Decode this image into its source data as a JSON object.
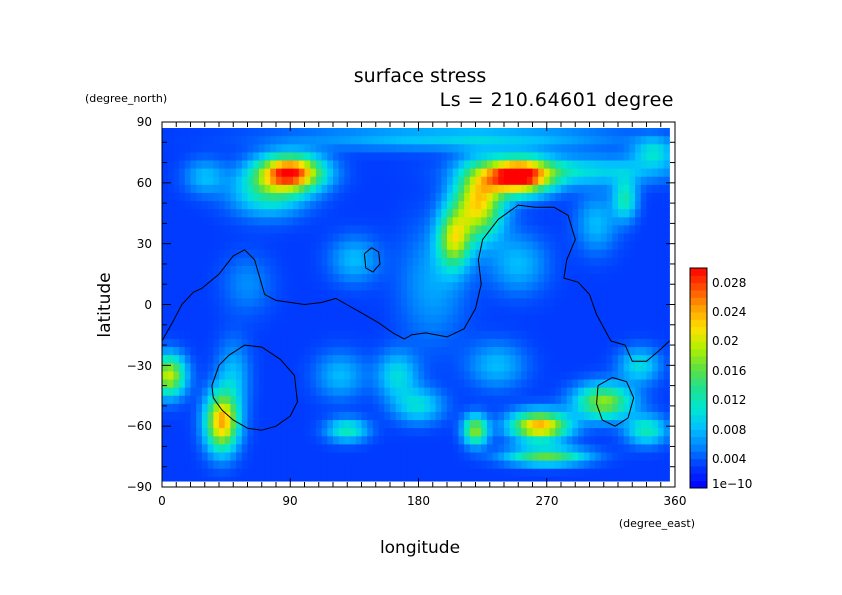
{
  "chart_data": {
    "type": "heatmap",
    "title": "surface stress",
    "subtitle": "Ls = 210.64601 degree",
    "xlabel": "longitude",
    "ylabel": "latitude",
    "x_units": "(degree_east)",
    "y_units": "(degree_north)",
    "xlim": [
      0,
      360
    ],
    "ylim": [
      -90,
      90
    ],
    "x_ticks": [
      "0",
      "90",
      "180",
      "270",
      "360"
    ],
    "y_ticks": [
      "90",
      "60",
      "30",
      "0",
      "−30",
      "−60",
      "−90"
    ],
    "x_tick_values": [
      0,
      90,
      180,
      270,
      360
    ],
    "y_tick_values": [
      90,
      60,
      30,
      0,
      -30,
      -60,
      -90
    ],
    "grid": false,
    "data_extent": {
      "lon": [
        0,
        356
      ],
      "lat": [
        -87,
        87
      ]
    },
    "background_value": 0.003,
    "hotspots": [
      {
        "lon": 90,
        "lat": 65,
        "value": 0.028,
        "sx": 16,
        "sy": 6
      },
      {
        "lon": 75,
        "lat": 55,
        "value": 0.012,
        "sx": 18,
        "sy": 8
      },
      {
        "lon": 30,
        "lat": 63,
        "value": 0.008,
        "sx": 10,
        "sy": 6
      },
      {
        "lon": 250,
        "lat": 63,
        "value": 0.03,
        "sx": 16,
        "sy": 6
      },
      {
        "lon": 222,
        "lat": 50,
        "value": 0.022,
        "sx": 12,
        "sy": 12
      },
      {
        "lon": 205,
        "lat": 32,
        "value": 0.018,
        "sx": 8,
        "sy": 10
      },
      {
        "lon": 190,
        "lat": 10,
        "value": 0.007,
        "sx": 16,
        "sy": 20
      },
      {
        "lon": 290,
        "lat": 66,
        "value": 0.01,
        "sx": 45,
        "sy": 5
      },
      {
        "lon": 240,
        "lat": 82,
        "value": 0.008,
        "sx": 60,
        "sy": 4
      },
      {
        "lon": 325,
        "lat": 52,
        "value": 0.012,
        "sx": 6,
        "sy": 7
      },
      {
        "lon": 5,
        "lat": -35,
        "value": 0.02,
        "sx": 8,
        "sy": 7
      },
      {
        "lon": 42,
        "lat": -58,
        "value": 0.024,
        "sx": 8,
        "sy": 10
      },
      {
        "lon": 50,
        "lat": -35,
        "value": 0.008,
        "sx": 8,
        "sy": 12
      },
      {
        "lon": 130,
        "lat": -62,
        "value": 0.012,
        "sx": 10,
        "sy": 4
      },
      {
        "lon": 180,
        "lat": -50,
        "value": 0.01,
        "sx": 12,
        "sy": 6
      },
      {
        "lon": 220,
        "lat": -62,
        "value": 0.018,
        "sx": 6,
        "sy": 5
      },
      {
        "lon": 265,
        "lat": -60,
        "value": 0.024,
        "sx": 14,
        "sy": 5
      },
      {
        "lon": 270,
        "lat": -75,
        "value": 0.016,
        "sx": 20,
        "sy": 3
      },
      {
        "lon": 310,
        "lat": -48,
        "value": 0.018,
        "sx": 14,
        "sy": 6
      },
      {
        "lon": 340,
        "lat": -62,
        "value": 0.012,
        "sx": 10,
        "sy": 5
      },
      {
        "lon": 165,
        "lat": -35,
        "value": 0.01,
        "sx": 10,
        "sy": 8
      },
      {
        "lon": 125,
        "lat": -35,
        "value": 0.008,
        "sx": 12,
        "sy": 8
      },
      {
        "lon": 135,
        "lat": 22,
        "value": 0.008,
        "sx": 12,
        "sy": 8
      },
      {
        "lon": 305,
        "lat": 40,
        "value": 0.008,
        "sx": 10,
        "sy": 10
      },
      {
        "lon": 335,
        "lat": -30,
        "value": 0.01,
        "sx": 10,
        "sy": 6
      },
      {
        "lon": 235,
        "lat": -30,
        "value": 0.008,
        "sx": 14,
        "sy": 8
      },
      {
        "lon": 60,
        "lat": 10,
        "value": 0.006,
        "sx": 12,
        "sy": 10
      },
      {
        "lon": 250,
        "lat": 20,
        "value": 0.008,
        "sx": 14,
        "sy": 10
      },
      {
        "lon": 345,
        "lat": 75,
        "value": 0.01,
        "sx": 10,
        "sy": 5
      },
      {
        "lon": 150,
        "lat": 82,
        "value": 0.006,
        "sx": 60,
        "sy": 4
      }
    ],
    "contours": [
      {
        "name": "northern-outline",
        "points": [
          [
            0,
            -18
          ],
          [
            8,
            -8
          ],
          [
            14,
            0
          ],
          [
            22,
            6
          ],
          [
            28,
            8
          ],
          [
            40,
            15
          ],
          [
            50,
            24
          ],
          [
            58,
            27
          ],
          [
            65,
            22
          ],
          [
            72,
            5
          ],
          [
            80,
            2
          ],
          [
            100,
            0
          ],
          [
            112,
            1
          ],
          [
            122,
            3
          ],
          [
            132,
            -1
          ],
          [
            142,
            -5
          ],
          [
            152,
            -9
          ],
          [
            162,
            -14
          ],
          [
            170,
            -17
          ],
          [
            175,
            -15
          ],
          [
            185,
            -14
          ],
          [
            200,
            -16
          ],
          [
            212,
            -12
          ],
          [
            220,
            -2
          ],
          [
            224,
            10
          ],
          [
            222,
            22
          ],
          [
            225,
            32
          ],
          [
            236,
            42
          ],
          [
            250,
            49
          ],
          [
            262,
            48
          ],
          [
            275,
            48
          ],
          [
            285,
            44
          ],
          [
            290,
            32
          ],
          [
            284,
            22
          ],
          [
            282,
            13
          ],
          [
            292,
            11
          ],
          [
            300,
            5
          ],
          [
            305,
            -5
          ],
          [
            315,
            -18
          ],
          [
            325,
            -20
          ],
          [
            330,
            -28
          ],
          [
            340,
            -28
          ],
          [
            350,
            -22
          ],
          [
            356,
            -18
          ]
        ]
      },
      {
        "name": "western-basin",
        "points": [
          [
            35,
            -40
          ],
          [
            40,
            -30
          ],
          [
            47,
            -25
          ],
          [
            58,
            -20
          ],
          [
            70,
            -21
          ],
          [
            83,
            -27
          ],
          [
            93,
            -35
          ],
          [
            95,
            -48
          ],
          [
            90,
            -55
          ],
          [
            80,
            -60
          ],
          [
            70,
            -62
          ],
          [
            60,
            -61
          ],
          [
            50,
            -57
          ],
          [
            42,
            -52
          ],
          [
            36,
            -46
          ],
          [
            35,
            -40
          ]
        ]
      },
      {
        "name": "small-ring",
        "points": [
          [
            142,
            25
          ],
          [
            147,
            28
          ],
          [
            152,
            26
          ],
          [
            153,
            20
          ],
          [
            148,
            16
          ],
          [
            143,
            18
          ],
          [
            142,
            25
          ]
        ]
      },
      {
        "name": "southern-basin",
        "points": [
          [
            306,
            -40
          ],
          [
            316,
            -36
          ],
          [
            326,
            -38
          ],
          [
            331,
            -46
          ],
          [
            327,
            -56
          ],
          [
            318,
            -60
          ],
          [
            309,
            -57
          ],
          [
            305,
            -49
          ],
          [
            306,
            -40
          ]
        ]
      }
    ],
    "colorbar": {
      "min": 0,
      "max": 0.03,
      "tick_labels": [
        "1e−10",
        "0.004",
        "0.008",
        "0.012",
        "0.016",
        "0.02",
        "0.024",
        "0.028"
      ],
      "tick_values": [
        0,
        0.004,
        0.008,
        0.012,
        0.016,
        0.02,
        0.024,
        0.028
      ],
      "color_stops": [
        "#0000ff",
        "#0033ff",
        "#0080ff",
        "#00c0ff",
        "#00e8d0",
        "#20e090",
        "#60e040",
        "#b0f000",
        "#ffe000",
        "#ffa000",
        "#ff5000",
        "#ff0000"
      ]
    }
  }
}
